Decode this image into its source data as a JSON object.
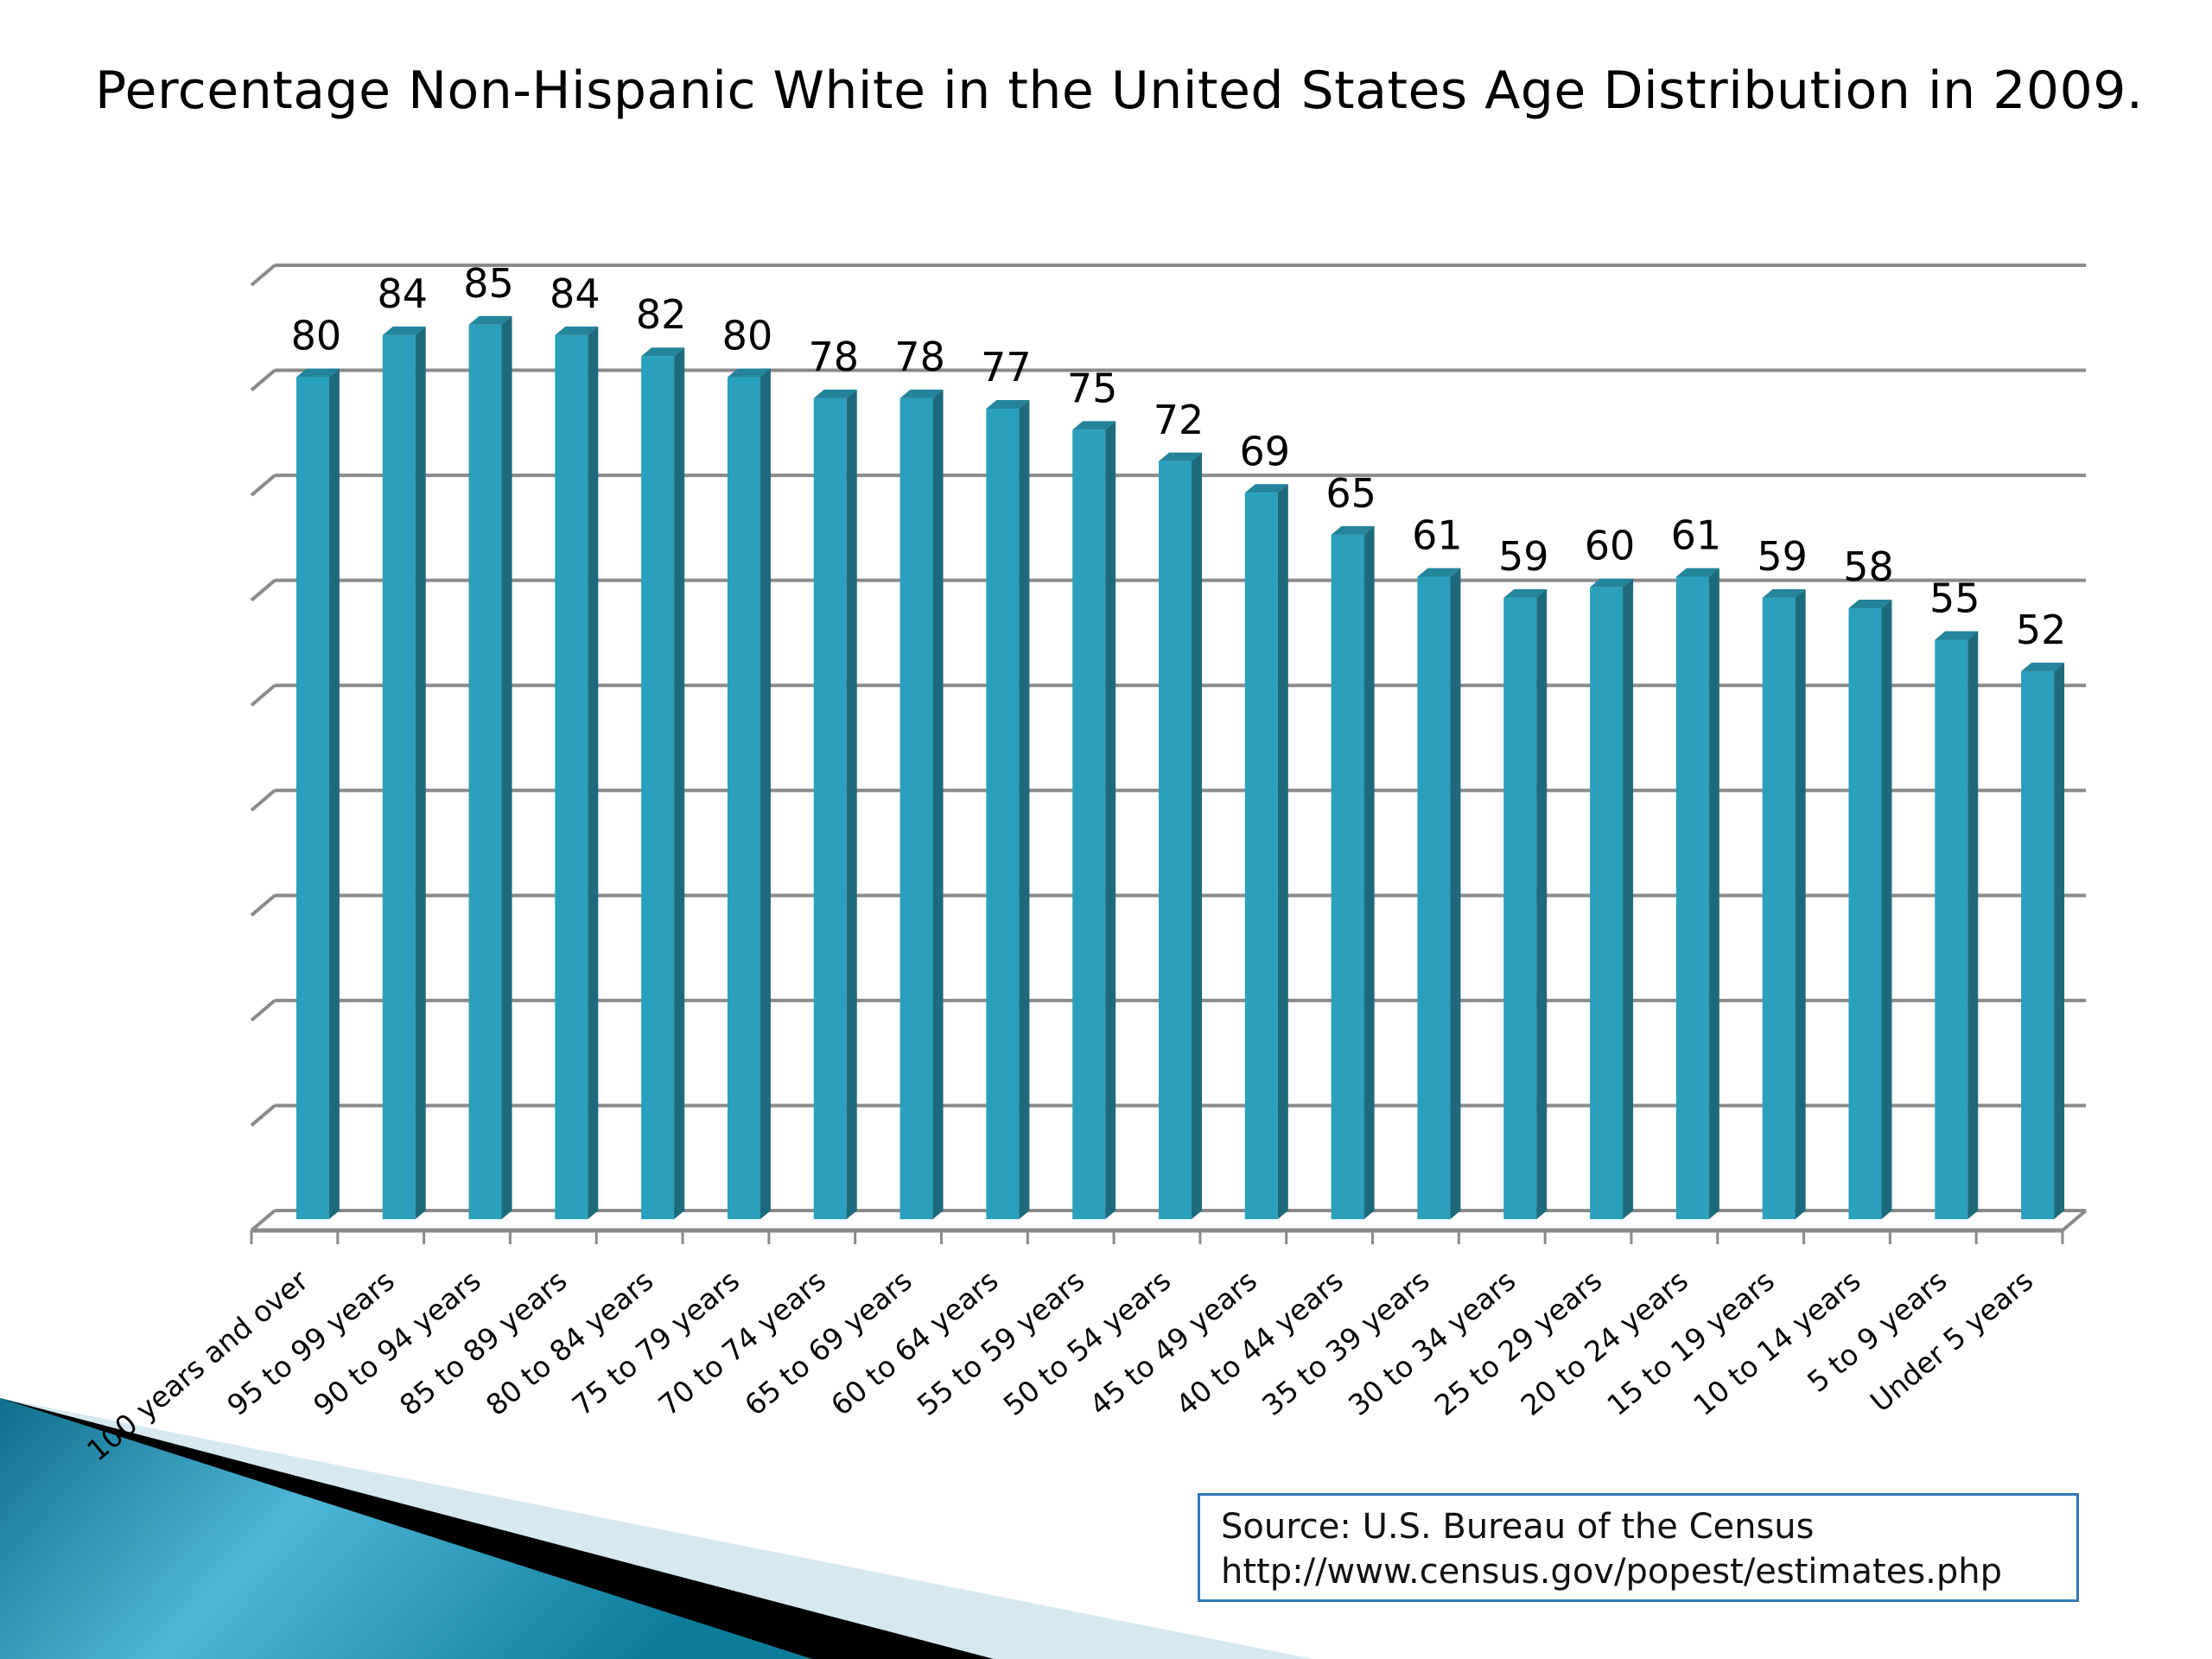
{
  "slide": {
    "title": "Percentage Non-Hispanic White in the United States Age Distribution in 2009.",
    "source_line1": "Source:  U.S. Bureau of the Census",
    "source_line2": "http://www.census.gov/popest/estimates.php"
  },
  "colors": {
    "bar_front": "#2aa0bd",
    "bar_side": "#1e6a7d",
    "bar_top": "#23849c",
    "grid": "#8a8a8a",
    "source_border": "#2f78b8",
    "deco_teal": "#1a8bab",
    "deco_light": "#d6e9f1"
  },
  "chart_data": {
    "type": "bar",
    "style": "3d-column",
    "title": "Percentage Non-Hispanic White in the United States Age Distribution in 2009.",
    "xlabel": "",
    "ylabel": "",
    "ylim": [
      0,
      90
    ],
    "y_gridline_step": 10,
    "y_tick_labels_shown": false,
    "grid": true,
    "legend": "none",
    "data_labels": true,
    "categories": [
      "100 years and over",
      "95 to 99 years",
      "90 to 94 years",
      "85 to 89 years",
      "80 to 84 years",
      "75 to 79 years",
      "70 to 74 years",
      "65 to 69 years",
      "60 to 64 years",
      "55 to 59 years",
      "50 to 54 years",
      "45 to 49 years",
      "40 to 44 years",
      "35 to 39 years",
      "30 to 34 years",
      "25 to 29 years",
      "20 to 24 years",
      "15 to 19 years",
      "10 to 14 years",
      "5 to 9 years",
      "Under 5 years"
    ],
    "values": [
      80,
      84,
      85,
      84,
      82,
      80,
      78,
      78,
      77,
      75,
      72,
      69,
      65,
      61,
      59,
      60,
      61,
      59,
      58,
      55,
      52
    ],
    "source": "Source:  U.S. Bureau of the Census http://www.census.gov/popest/estimates.php"
  }
}
